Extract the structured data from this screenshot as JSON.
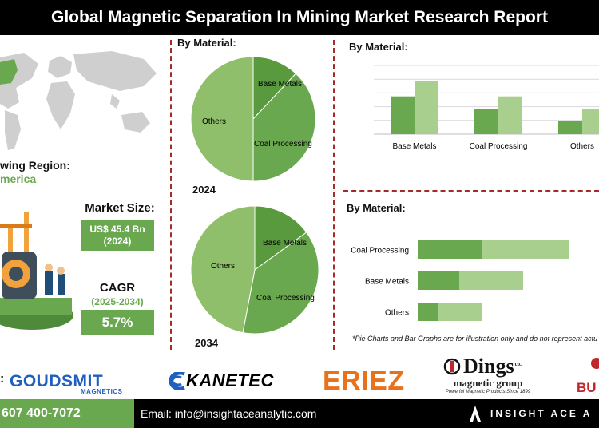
{
  "header": {
    "title": "Global Magnetic Separation In Mining Market Research Report"
  },
  "left_panel": {
    "region_label": "wing Region:",
    "region_value": "merica",
    "market_size_label": "Market Size:",
    "market_size_value": "US$ 45.4 Bn",
    "market_size_year": "(2024)",
    "cagr_label": "CAGR",
    "cagr_years": "(2025-2034)",
    "cagr_value": "5.7%"
  },
  "pie_section": {
    "title": "By Material:",
    "year_top": "2024",
    "year_bottom": "2034"
  },
  "bar_section": {
    "title": "By Material:"
  },
  "hbar_section": {
    "title": "By Material:"
  },
  "colors": {
    "dark_green": "#6aa84f",
    "mid_green": "#4e9a3a",
    "light_green": "#a9cf8f",
    "pie_light": "#8fbf6a",
    "divider": "#a52a2a"
  },
  "chart_data": [
    {
      "type": "pie",
      "year": "2024",
      "slices": [
        {
          "label": "Base Metals",
          "value": 12,
          "color": "#5a9a3e"
        },
        {
          "label": "Coal Processing",
          "value": 38,
          "color": "#6aa84f"
        },
        {
          "label": "Others",
          "value": 50,
          "color": "#8fbf6a"
        }
      ]
    },
    {
      "type": "pie",
      "year": "2034",
      "slices": [
        {
          "label": "Base Metals",
          "value": 15,
          "color": "#5a9a3e"
        },
        {
          "label": "Coal Processing",
          "value": 38,
          "color": "#6aa84f"
        },
        {
          "label": "Others",
          "value": 47,
          "color": "#8fbf6a"
        }
      ]
    },
    {
      "type": "bar",
      "categories": [
        "Base Metals",
        "Coal Processing",
        "Others"
      ],
      "series": [
        {
          "values": [
            55,
            37,
            19
          ],
          "color": "#6aa84f"
        },
        {
          "values": [
            77,
            55,
            37
          ],
          "color": "#a9cf8f"
        }
      ],
      "ylim": [
        0,
        100
      ]
    },
    {
      "type": "bar",
      "orientation": "horizontal",
      "stacked": true,
      "categories": [
        "Coal Processing",
        "Base Metals",
        "Others"
      ],
      "series": [
        {
          "values": [
            40,
            26,
            13
          ],
          "color": "#6aa84f"
        },
        {
          "values": [
            55,
            40,
            27
          ],
          "color": "#a9cf8f"
        }
      ],
      "xlim": [
        0,
        100
      ]
    }
  ],
  "note": "*Pie Charts and Bar Graphs are for illustration only and do not represent actu",
  "logos": {
    "colon": ":",
    "goudsmit": "GOUDSMIT",
    "goudsmit_sub": "MAGNETICS",
    "kanetec": "KANETEC",
    "eriez": "ERIEZ",
    "dings": "Dings",
    "dings_co": "co.",
    "dings_group": "magnetic group",
    "dings_tag": "Powerful Magnetic Products Since 1899",
    "bu": "BU"
  },
  "footer": {
    "phone": "607 400-7072",
    "email": "Email: info@insightaceanalytic.com",
    "brand": "INSIGHT ACE A"
  }
}
